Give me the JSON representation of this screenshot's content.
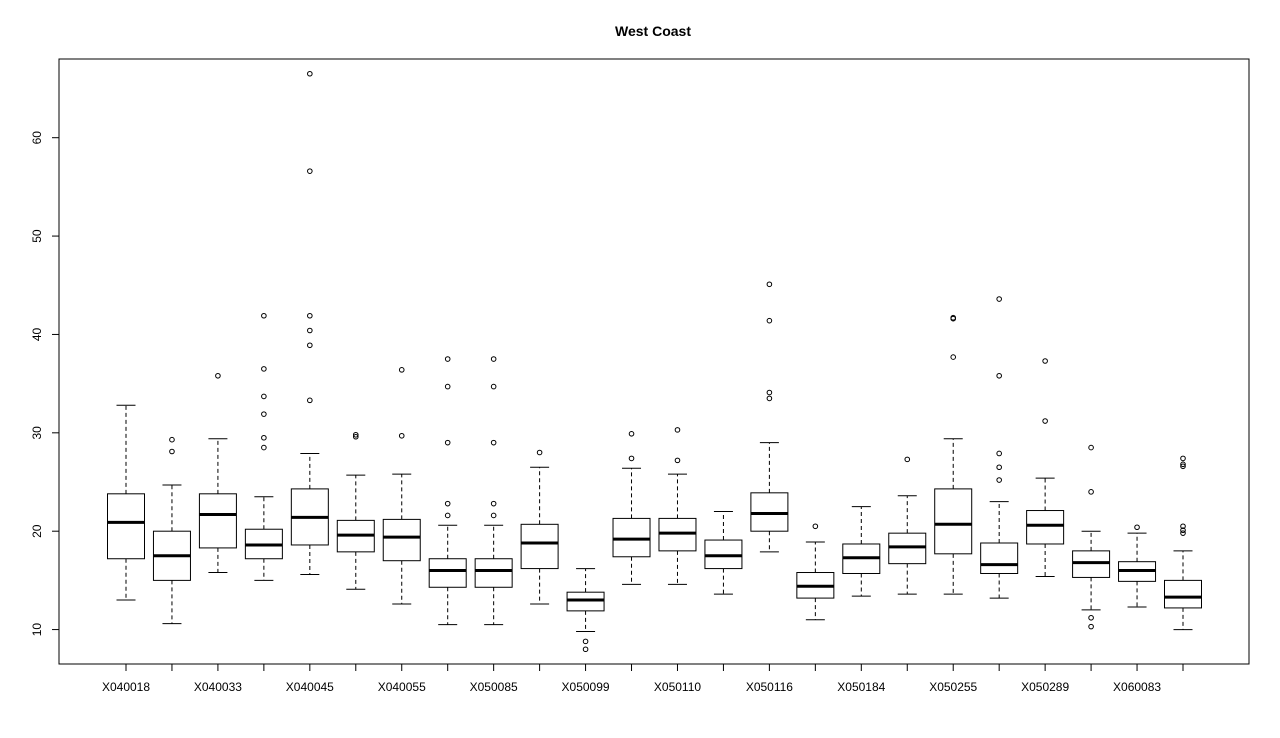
{
  "chart_data": {
    "type": "boxplot",
    "title": "West Coast",
    "xlabel": "",
    "ylabel": "",
    "ylim": [
      6.5,
      68
    ],
    "yticks": [
      10,
      20,
      30,
      40,
      50,
      60
    ],
    "grid": false,
    "legend": "none",
    "x_tick_labels": [
      "X040018",
      "X040033",
      "X040045",
      "X040055",
      "X050085",
      "X050099",
      "X050110",
      "X050116",
      "X050184",
      "X050255",
      "X050289",
      "X060083"
    ],
    "boxes": [
      {
        "min": 13.0,
        "q1": 17.2,
        "median": 20.9,
        "q3": 23.8,
        "max": 32.8,
        "outliers": []
      },
      {
        "min": 10.6,
        "q1": 15.0,
        "median": 17.5,
        "q3": 20.0,
        "max": 24.7,
        "outliers": [
          28.1,
          29.3
        ]
      },
      {
        "min": 15.8,
        "q1": 18.3,
        "median": 21.7,
        "q3": 23.8,
        "max": 29.4,
        "outliers": [
          35.8
        ]
      },
      {
        "min": 15.0,
        "q1": 17.2,
        "median": 18.6,
        "q3": 20.2,
        "max": 23.5,
        "outliers": [
          28.5,
          29.5,
          31.9,
          33.7,
          36.5,
          41.9
        ]
      },
      {
        "min": 15.6,
        "q1": 18.6,
        "median": 21.4,
        "q3": 24.3,
        "max": 27.9,
        "outliers": [
          33.3,
          38.9,
          40.4,
          41.9,
          56.6,
          66.5
        ]
      },
      {
        "min": 14.1,
        "q1": 17.9,
        "median": 19.6,
        "q3": 21.1,
        "max": 25.7,
        "outliers": [
          29.6,
          29.8
        ]
      },
      {
        "min": 12.6,
        "q1": 17.0,
        "median": 19.4,
        "q3": 21.2,
        "max": 25.8,
        "outliers": [
          29.7,
          36.4
        ]
      },
      {
        "min": 10.5,
        "q1": 14.3,
        "median": 16.0,
        "q3": 17.2,
        "max": 20.6,
        "outliers": [
          21.6,
          22.8,
          29.0,
          34.7,
          37.5
        ]
      },
      {
        "min": 10.5,
        "q1": 14.3,
        "median": 16.0,
        "q3": 17.2,
        "max": 20.6,
        "outliers": [
          21.6,
          22.8,
          29.0,
          34.7,
          37.5
        ]
      },
      {
        "min": 12.6,
        "q1": 16.2,
        "median": 18.8,
        "q3": 20.7,
        "max": 26.5,
        "outliers": [
          28.0
        ]
      },
      {
        "min": 9.8,
        "q1": 11.9,
        "median": 13.0,
        "q3": 13.8,
        "max": 16.2,
        "outliers": [
          8.0,
          8.8
        ]
      },
      {
        "min": 14.6,
        "q1": 17.4,
        "median": 19.2,
        "q3": 21.3,
        "max": 26.4,
        "outliers": [
          27.4,
          29.9
        ]
      },
      {
        "min": 14.6,
        "q1": 18.0,
        "median": 19.8,
        "q3": 21.3,
        "max": 25.8,
        "outliers": [
          27.2,
          30.3
        ]
      },
      {
        "min": 13.6,
        "q1": 16.2,
        "median": 17.5,
        "q3": 19.1,
        "max": 22.0,
        "outliers": []
      },
      {
        "min": 17.9,
        "q1": 20.0,
        "median": 21.8,
        "q3": 23.9,
        "max": 29.0,
        "outliers": [
          33.5,
          34.1,
          41.4,
          45.1
        ]
      },
      {
        "min": 11.0,
        "q1": 13.2,
        "median": 14.4,
        "q3": 15.8,
        "max": 18.9,
        "outliers": [
          20.5
        ]
      },
      {
        "min": 13.4,
        "q1": 15.7,
        "median": 17.3,
        "q3": 18.7,
        "max": 22.5,
        "outliers": []
      },
      {
        "min": 13.6,
        "q1": 16.7,
        "median": 18.4,
        "q3": 19.8,
        "max": 23.6,
        "outliers": [
          27.3
        ]
      },
      {
        "min": 13.6,
        "q1": 17.7,
        "median": 20.7,
        "q3": 24.3,
        "max": 29.4,
        "outliers": [
          37.7,
          41.6,
          41.7
        ]
      },
      {
        "min": 13.2,
        "q1": 15.7,
        "median": 16.6,
        "q3": 18.8,
        "max": 23.0,
        "outliers": [
          25.2,
          26.5,
          27.9,
          35.8,
          43.6
        ]
      },
      {
        "min": 15.4,
        "q1": 18.7,
        "median": 20.6,
        "q3": 22.1,
        "max": 25.4,
        "outliers": [
          31.2,
          37.3
        ]
      },
      {
        "min": 12.0,
        "q1": 15.3,
        "median": 16.8,
        "q3": 18.0,
        "max": 20.0,
        "outliers": [
          10.3,
          11.2,
          24.0,
          28.5
        ]
      },
      {
        "min": 12.3,
        "q1": 14.9,
        "median": 16.0,
        "q3": 16.9,
        "max": 19.8,
        "outliers": [
          20.4
        ]
      },
      {
        "min": 10.0,
        "q1": 12.2,
        "median": 13.3,
        "q3": 15.0,
        "max": 18.0,
        "outliers": [
          19.8,
          20.1,
          20.5,
          26.6,
          26.8,
          27.4
        ]
      }
    ]
  }
}
